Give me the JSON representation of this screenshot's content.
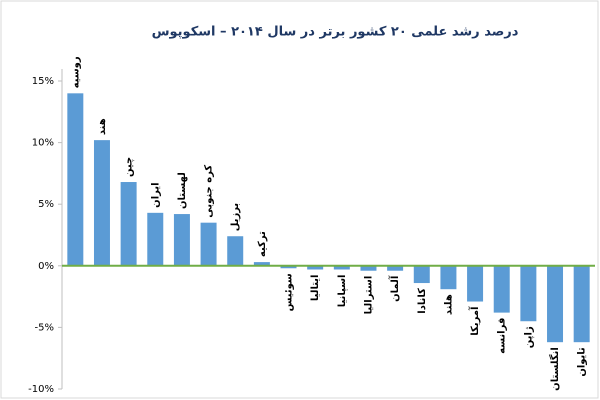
{
  "chart_data": {
    "type": "bar",
    "title": "درصد رشد علمی ۲۰ کشور برتر در سال ۲۰۱۴ – اسکوپوس",
    "categories": [
      "روسیه",
      "هند",
      "چین",
      "ایران",
      "لهستان",
      "کره جنوبی",
      "برزیل",
      "ترکیه",
      "سوئیس",
      "ایتالیا",
      "اسپانیا",
      "استرالیا",
      "آلمان",
      "کانادا",
      "هلند",
      "آمریکا",
      "فرانسه",
      "ژاپن",
      "انگلستان",
      "تایوان"
    ],
    "values": [
      14.0,
      10.2,
      6.8,
      4.3,
      4.2,
      3.5,
      2.4,
      0.3,
      -0.2,
      -0.3,
      -0.3,
      -0.4,
      -0.4,
      -1.4,
      -1.9,
      -2.9,
      -3.8,
      -4.5,
      -6.2,
      -6.2
    ],
    "color": "#5b9bd5",
    "zero_line_color": "#70ad47",
    "ylim": [
      -10,
      15
    ],
    "yticks": [
      {
        "value": -10,
        "label": "-10%"
      },
      {
        "value": -5,
        "label": "-5%"
      },
      {
        "value": 0,
        "label": "0%"
      },
      {
        "value": 5,
        "label": "5%"
      },
      {
        "value": 10,
        "label": "10%"
      },
      {
        "value": 15,
        "label": "15%"
      }
    ],
    "grid": false
  }
}
